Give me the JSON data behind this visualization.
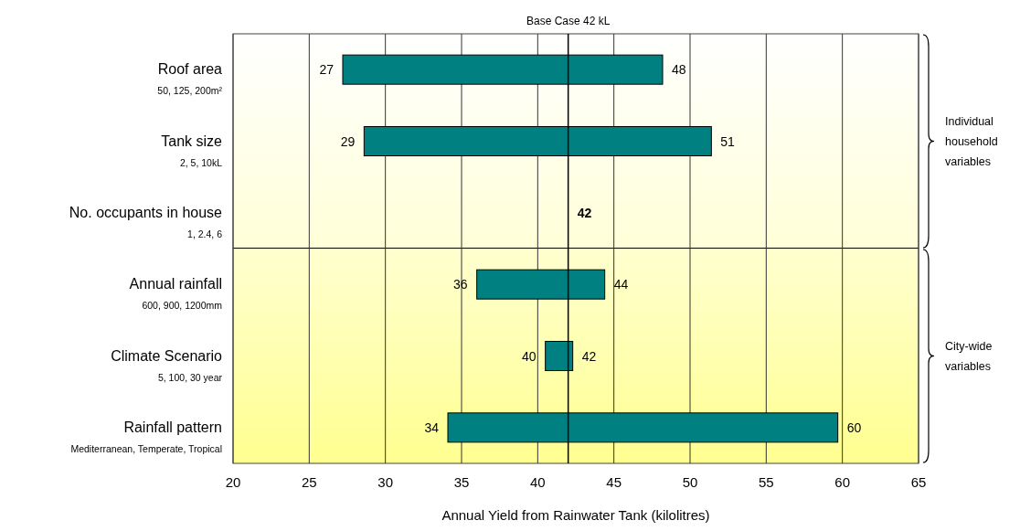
{
  "chart_data": {
    "type": "bar",
    "orientation": "horizontal",
    "xlabel": "Annual Yield from Rainwater Tank (kilolitres)",
    "categories": [
      "Roof area\n50, 125, 200m²",
      "Tank size\n2, 5, 10kL",
      "No. occupants in house\n1, 2.4, 6",
      "Annual rainfall\n600, 900, 1200mm",
      "Climate Scenario\n5, 100, 30 year",
      "Rainfall pattern\nMediterranean, Temperate, Tropical"
    ],
    "base": [
      27.2,
      28.6,
      null,
      36.0,
      40.5,
      34.1
    ],
    "values": [
      21.0,
      22.8,
      null,
      8.4,
      1.8,
      25.6
    ],
    "color": "#008080",
    "xlim": [
      20,
      65
    ],
    "xticks": [
      20,
      25,
      30,
      35,
      40,
      45,
      50,
      55,
      60,
      65
    ],
    "grid": "x",
    "ref_lines": [
      {
        "axis": "x",
        "value": 42,
        "label": "Base Case 42 kL"
      }
    ],
    "annotations": [
      {
        "text": "27",
        "x": 27.2,
        "y": "Roof area\n50, 125, 200m²"
      },
      {
        "text": "48",
        "x": 48.2,
        "y": "Roof area\n50, 125, 200m²"
      },
      {
        "text": "29",
        "x": 28.6,
        "y": "Tank size\n2, 5, 10kL"
      },
      {
        "text": "51",
        "x": 51.4,
        "y": "Tank size\n2, 5, 10kL"
      },
      {
        "text": "42",
        "x": 42,
        "y": "No. occupants in house\n1, 2.4, 6"
      },
      {
        "text": "36",
        "x": 36.0,
        "y": "Annual rainfall\n600, 900, 1200mm"
      },
      {
        "text": "44",
        "x": 44.4,
        "y": "Annual rainfall\n600, 900, 1200mm"
      },
      {
        "text": "40",
        "x": 40.5,
        "y": "Climate Scenario\n5, 100, 30 year"
      },
      {
        "text": "42",
        "x": 42.3,
        "y": "Climate Scenario\n5, 100, 30 year"
      },
      {
        "text": "34",
        "x": 34.1,
        "y": "Rainfall pattern\nMediterranean, Temperate, Tropical"
      },
      {
        "text": "60",
        "x": 59.7,
        "y": "Rainfall pattern\nMediterranean, Temperate, Tropical"
      },
      "Individual household variables",
      "City-wide variables"
    ]
  }
}
